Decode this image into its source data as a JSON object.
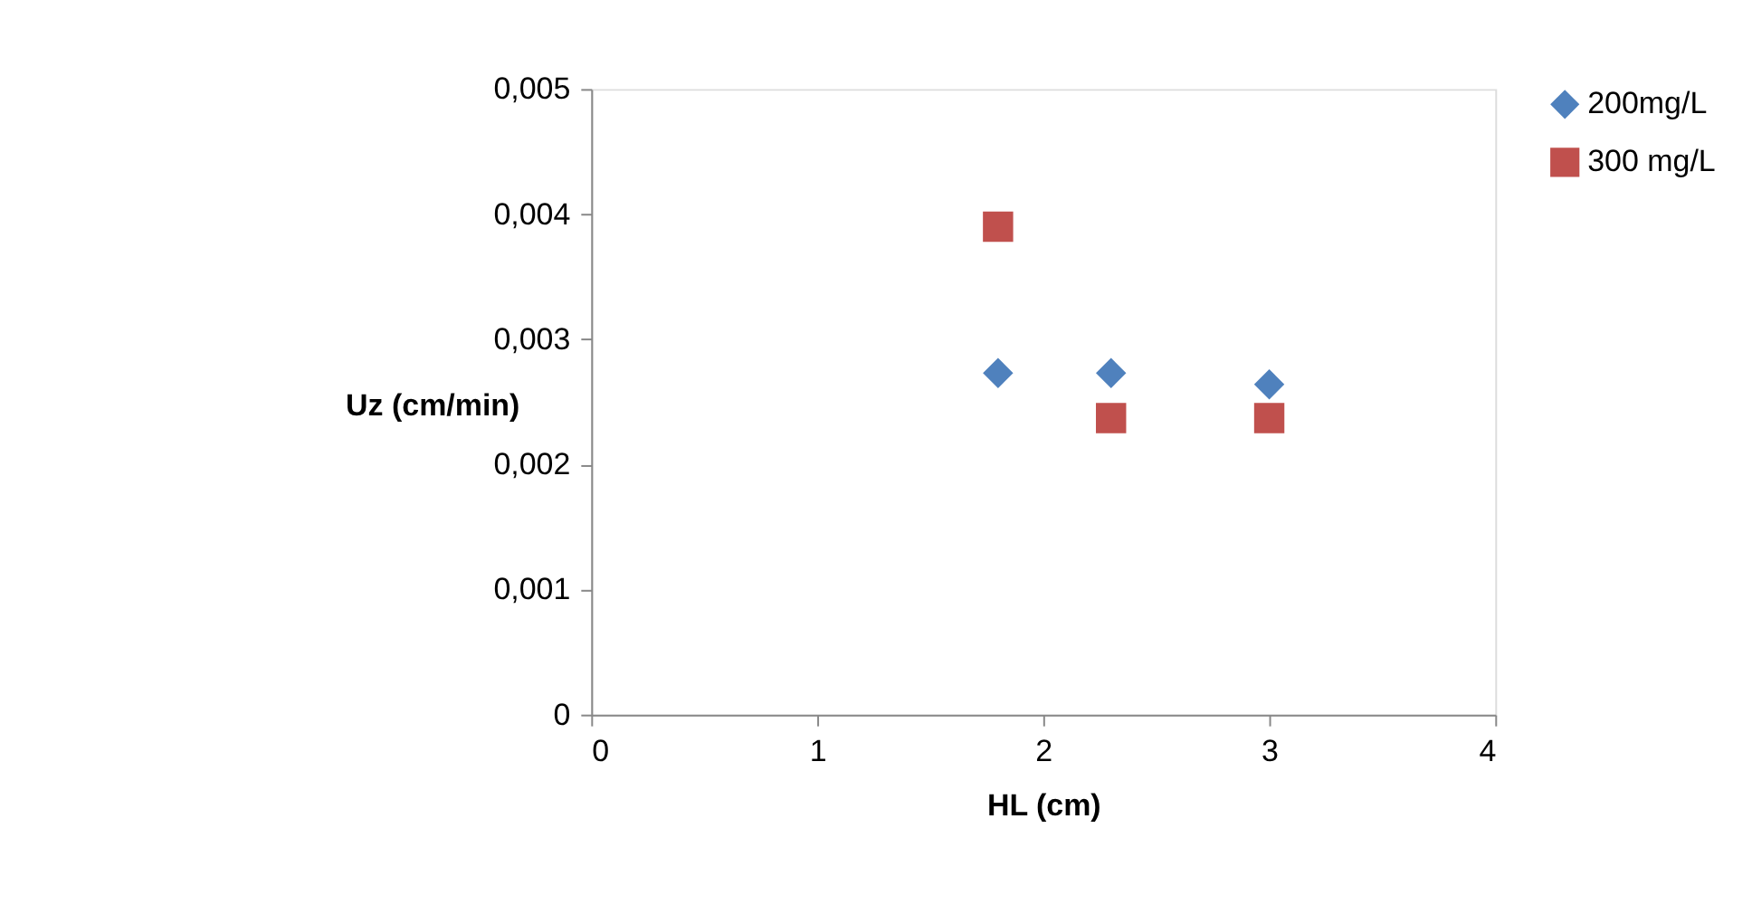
{
  "chart_data": {
    "type": "scatter",
    "xlabel": "HL (cm)",
    "ylabel": "Uz (cm/min)",
    "xlim": [
      0,
      4
    ],
    "xticks": [
      0,
      1,
      2,
      3,
      4
    ],
    "ylim": [
      0,
      0.005
    ],
    "yticks": [
      0,
      {
        "value": 0.001,
        "label": "0,001"
      },
      {
        "value": 0.002,
        "label": "0,002"
      },
      {
        "value": 0.003,
        "label": "0,003"
      },
      {
        "value": 0.004,
        "label": "0,004"
      },
      {
        "value": 0.005,
        "label": "0,005"
      }
    ],
    "grid": false,
    "legend": "right",
    "series": [
      {
        "name": "200mg/L",
        "color": "#4f81bd",
        "marker": "diamond",
        "x": [
          1.8,
          2.3,
          3.0
        ],
        "values": [
          0.00273,
          0.00273,
          0.00264
        ]
      },
      {
        "name": "300 mg/L",
        "color": "#c0504d",
        "marker": "square",
        "x": [
          1.8,
          2.3,
          3.0
        ],
        "values": [
          0.0039,
          0.00237,
          0.00237
        ]
      }
    ]
  }
}
